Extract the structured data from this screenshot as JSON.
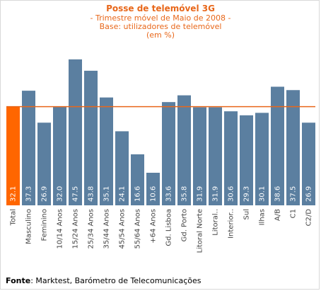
{
  "title": "Posse de telemóvel 3G",
  "subtitle": "- Trimestre móvel de Maio de 2008 -",
  "base": "Base: utilizadores de telemóvel",
  "unit": "(em %)",
  "source_label": "Fonte",
  "source_text": ": Marktest, Barómetro de Telecomunicações",
  "colors": {
    "total_bar": "#ff6600",
    "bar": "#5b7fa0",
    "reference_line": "#e8671a",
    "title": "#e8671a"
  },
  "chart_data": {
    "type": "bar",
    "categories": [
      "Total",
      "Masculino",
      "Feminino",
      "10/14 Anos",
      "15/24 Anos",
      "25/34 Anos",
      "35/44 Anos",
      "45/54 Anos",
      "55/64 Anos",
      "+64 Anos",
      "Gd. Lisboa",
      "Gd. Porto",
      "Litoral Norte",
      "Litoral..",
      "Interior..",
      "Sul",
      "Ilhas",
      "A/B",
      "C1",
      "C2/D"
    ],
    "values": [
      32.1,
      37.3,
      26.9,
      32.0,
      47.5,
      43.8,
      35.1,
      24.1,
      16.6,
      10.6,
      33.6,
      35.8,
      31.9,
      31.9,
      30.6,
      29.3,
      30.1,
      38.6,
      37.5,
      26.9
    ],
    "value_labels": [
      "32.1",
      "37.3",
      "26.9",
      "32.0",
      "47.5",
      "43.8",
      "35.1",
      "24.1",
      "16.6",
      "10.6",
      "33.6",
      "35.8",
      "31.9",
      "31.9",
      "30.6",
      "29.3",
      "30.1",
      "38.6",
      "37.5",
      "26.9"
    ],
    "reference_line": 32.1,
    "ylim": [
      0,
      50
    ],
    "grid": false,
    "legend": "none"
  }
}
